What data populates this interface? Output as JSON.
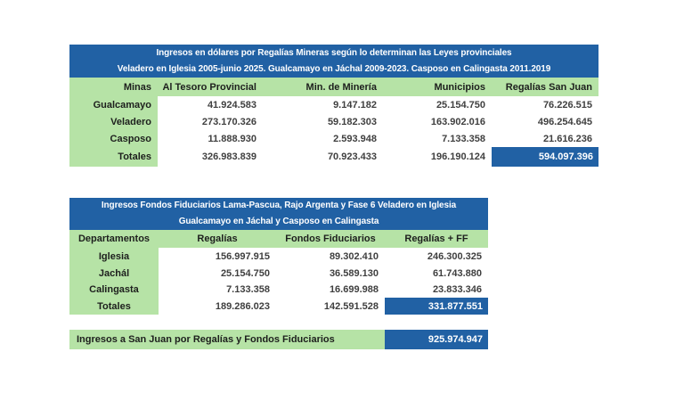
{
  "colors": {
    "banner_blue": "#2161a4",
    "cell_green": "#b6e3a6",
    "total_blue": "#2161a4",
    "number_text": "#3f3f3f"
  },
  "table1": {
    "title_line1": "Ingresos en dólares por Regalías Mineras  según lo determinan las Leyes provinciales",
    "title_line2": "Veladero en Iglesia 2005-junio 2025. Gualcamayo en Jáchal 2009-2023. Casposo en Calingasta 2011.2019",
    "headers": [
      "Minas",
      "Al Tesoro Provincial",
      "Min. de Minería",
      "Municipios",
      "Regalías San Juan"
    ],
    "rows": [
      {
        "name": "Gualcamayo",
        "values": [
          "41.924.583",
          "9.147.182",
          "25.154.750",
          "76.226.515"
        ]
      },
      {
        "name": "Veladero",
        "values": [
          "273.170.326",
          "59.182.303",
          "163.902.016",
          "496.254.645"
        ]
      },
      {
        "name": "Casposo",
        "values": [
          "11.888.930",
          "2.593.948",
          "7.133.358",
          "21.616.236"
        ]
      },
      {
        "name": "Totales",
        "values": [
          "326.983.839",
          "70.923.433",
          "196.190.124",
          "594.097.396"
        ]
      }
    ]
  },
  "table2": {
    "title_line1": "Ingresos Fondos Fiduciarios Lama-Pascua, Rajo Argenta y Fase 6 Veladero en Iglesia",
    "title_line2": "Gualcamayo en Jáchal y Casposo en Calingasta",
    "headers": [
      "Departamentos",
      "Regalías",
      "Fondos Fiduciarios",
      "Regalías + FF"
    ],
    "rows": [
      {
        "name": "Iglesia",
        "values": [
          "156.997.915",
          "89.302.410",
          "246.300.325"
        ]
      },
      {
        "name": "Jachál",
        "values": [
          "25.154.750",
          "36.589.130",
          "61.743.880"
        ]
      },
      {
        "name": "Calingasta",
        "values": [
          "7.133.358",
          "16.699.988",
          "23.833.346"
        ]
      },
      {
        "name": "Totales",
        "values": [
          "189.286.023",
          "142.591.528",
          "331.877.551"
        ]
      }
    ]
  },
  "grand_total_bar": {
    "label": "Ingresos a San Juan por Regalías y Fondos Fiduciarios",
    "value": "925.974.947"
  },
  "chart_data": {
    "type": "table",
    "tables": [
      {
        "title": "Ingresos en dólares por Regalías Mineras según lo determinan las Leyes provinciales — Veladero en Iglesia 2005-junio 2025. Gualcamayo en Jáchal 2009-2023. Casposo en Calingasta 2011.2019",
        "columns": [
          "Minas",
          "Al Tesoro Provincial",
          "Min. de Minería",
          "Municipios",
          "Regalías San Juan"
        ],
        "rows": [
          [
            "Gualcamayo",
            41924583,
            9147182,
            25154750,
            76226515
          ],
          [
            "Veladero",
            273170326,
            59182303,
            163902016,
            496254645
          ],
          [
            "Casposo",
            11888930,
            2593948,
            7133358,
            21616236
          ],
          [
            "Totales",
            326983839,
            70923433,
            196190124,
            594097396
          ]
        ]
      },
      {
        "title": "Ingresos Fondos Fiduciarios Lama-Pascua, Rajo Argenta y Fase 6 Veladero en Iglesia — Gualcamayo en Jáchal y Casposo en Calingasta",
        "columns": [
          "Departamentos",
          "Regalías",
          "Fondos Fiduciarios",
          "Regalías + FF"
        ],
        "rows": [
          [
            "Iglesia",
            156997915,
            89302410,
            246300325
          ],
          [
            "Jachál",
            25154750,
            36589130,
            61743880
          ],
          [
            "Calingasta",
            7133358,
            16699988,
            23833346
          ],
          [
            "Totales",
            189286023,
            142591528,
            331877551
          ]
        ]
      },
      {
        "title": "Ingresos a San Juan por Regalías y Fondos Fiduciarios",
        "columns": [
          "Total"
        ],
        "rows": [
          [
            "Total",
            925974947
          ]
        ]
      }
    ]
  }
}
